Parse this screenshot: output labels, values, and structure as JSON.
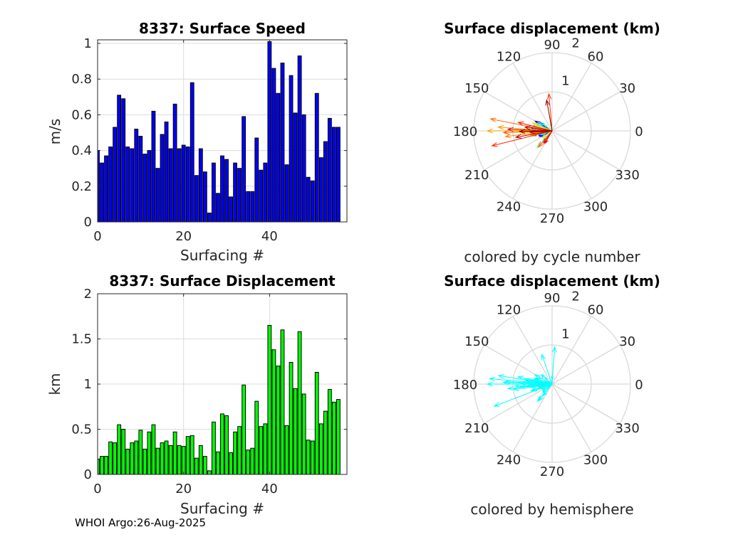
{
  "footer": "WHOI Argo:26-Aug-2025",
  "chart_data": [
    {
      "type": "bar",
      "title": "8337: Surface Speed",
      "xlabel": "Surfacing #",
      "ylabel": "m/s",
      "xlim": [
        0,
        58
      ],
      "ylim": [
        0,
        1.02
      ],
      "xticks": [
        "0",
        "20",
        "40"
      ],
      "yticks": [
        "0",
        "0.2",
        "0.4",
        "0.6",
        "0.8",
        "1"
      ],
      "grid": true,
      "color": "#0000ff",
      "values": [
        0.4,
        0.33,
        0.37,
        0.42,
        0.53,
        0.71,
        0.69,
        0.42,
        0.41,
        0.52,
        0.48,
        0.38,
        0.4,
        0.62,
        0.3,
        0.49,
        0.56,
        0.41,
        0.66,
        0.41,
        0.43,
        0.42,
        0.78,
        0.26,
        0.41,
        0.28,
        0.05,
        0.33,
        0.16,
        0.37,
        0.35,
        0.14,
        0.33,
        0.3,
        0.59,
        0.17,
        0.17,
        0.47,
        0.29,
        0.33,
        1.01,
        0.86,
        0.72,
        0.89,
        0.32,
        0.82,
        0.61,
        0.93,
        0.6,
        0.25,
        0.23,
        0.72,
        0.36,
        0.45,
        0.58,
        0.53,
        0.53
      ]
    },
    {
      "type": "bar",
      "title": "8337: Surface Displacement",
      "xlabel": "Surfacing #",
      "ylabel": "km",
      "xlim": [
        0,
        58
      ],
      "ylim": [
        0,
        2
      ],
      "xticks": [
        "0",
        "20",
        "40"
      ],
      "yticks": [
        "0",
        "0.5",
        "1",
        "1.5",
        "2"
      ],
      "grid": true,
      "color": "#00ff00",
      "values": [
        0.17,
        0.2,
        0.2,
        0.36,
        0.35,
        0.55,
        0.5,
        0.28,
        0.35,
        0.37,
        0.49,
        0.28,
        0.47,
        0.55,
        0.29,
        0.35,
        0.37,
        0.32,
        0.47,
        0.32,
        0.31,
        0.42,
        0.43,
        0.18,
        0.32,
        0.2,
        0.04,
        0.58,
        0.25,
        0.67,
        0.65,
        0.24,
        0.47,
        0.53,
        0.99,
        0.27,
        0.29,
        0.81,
        0.53,
        0.56,
        1.65,
        1.38,
        1.2,
        1.6,
        0.54,
        1.24,
        0.95,
        1.58,
        0.89,
        0.38,
        0.37,
        1.13,
        0.56,
        0.7,
        0.94,
        0.8,
        0.83
      ]
    },
    {
      "type": "compass",
      "title": "Surface displacement (km)",
      "caption": "colored by cycle number",
      "rlim": [
        0,
        2
      ],
      "rticks": [
        "1",
        "2"
      ],
      "angle_ticks": [
        "0",
        "30",
        "60",
        "90",
        "120",
        "150",
        "180",
        "210",
        "240",
        "270",
        "300",
        "330"
      ],
      "coloring": "jet by cycle",
      "directions_deg": [
        175,
        185,
        160,
        200,
        178,
        190,
        150,
        170,
        205,
        182,
        165,
        195,
        188,
        172,
        210,
        180,
        145,
        192,
        176,
        168,
        198,
        183,
        155,
        186,
        225,
        100,
        174,
        228,
        140,
        181,
        177,
        196,
        163,
        189,
        179,
        171,
        215,
        184,
        158,
        193,
        180,
        176,
        187,
        169,
        230,
        182,
        95,
        194,
        166,
        235,
        240,
        178,
        184,
        172,
        190,
        100,
        181
      ]
    },
    {
      "type": "compass",
      "title": "Surface displacement (km)",
      "caption": "colored by hemisphere",
      "rlim": [
        0,
        2
      ],
      "rticks": [
        "1",
        "2"
      ],
      "angle_ticks": [
        "0",
        "30",
        "60",
        "90",
        "120",
        "150",
        "180",
        "210",
        "240",
        "270",
        "300",
        "330"
      ],
      "coloring": "single",
      "color": "#00ffff"
    }
  ]
}
